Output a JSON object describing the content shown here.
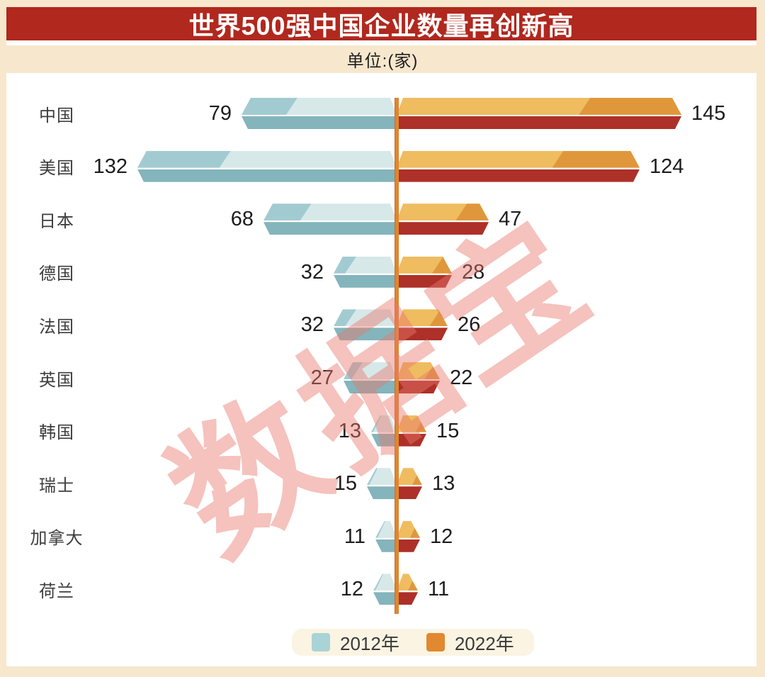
{
  "title": "世界500强中国企业数量再创新高",
  "subtitle": "单位:(家)",
  "watermark": "数据宝",
  "legend": {
    "items": [
      {
        "label": "2012年",
        "color": "#a9d3d7"
      },
      {
        "label": "2022年",
        "color": "#e2882f"
      }
    ]
  },
  "colors": {
    "page_bg": "#f7e7cd",
    "banner_red": "#b0281e",
    "panel_bg": "#ffffff",
    "teal_light": "#d7e8e9",
    "teal_dark": "#a2cbd1",
    "teal_bottom": "#84b4bc",
    "orange_light": "#efbc60",
    "orange_dark": "#e0973c",
    "red_bottom": "#ad3029",
    "axis_orange": "#e0862e",
    "watermark_pink": "rgba(233,119,108,0.45)",
    "value_text": "#1d1d1d",
    "category_text": "#3d3d3d"
  },
  "chart_data": {
    "type": "bar",
    "variant": "bidirectional-horizontal",
    "title": "世界500强中国企业数量再创新高",
    "unit_label": "单位:(家)",
    "categories": [
      "中国",
      "美国",
      "日本",
      "德国",
      "法国",
      "英国",
      "韩国",
      "瑞士",
      "加拿大",
      "荷兰"
    ],
    "series": [
      {
        "name": "2012年",
        "direction": "left",
        "color": "#a9d3d7",
        "values": [
          79,
          132,
          68,
          32,
          32,
          27,
          13,
          15,
          11,
          12
        ]
      },
      {
        "name": "2022年",
        "direction": "right",
        "color": "#e2882f",
        "values": [
          145,
          124,
          47,
          28,
          26,
          22,
          15,
          13,
          12,
          11
        ]
      }
    ],
    "value_labels_shown": true,
    "axis_line": "center-vertical",
    "grid": false,
    "legend_position": "bottom",
    "xlim_left_2012": [
      0,
      145
    ],
    "xlim_right_2022": [
      0,
      145
    ]
  }
}
